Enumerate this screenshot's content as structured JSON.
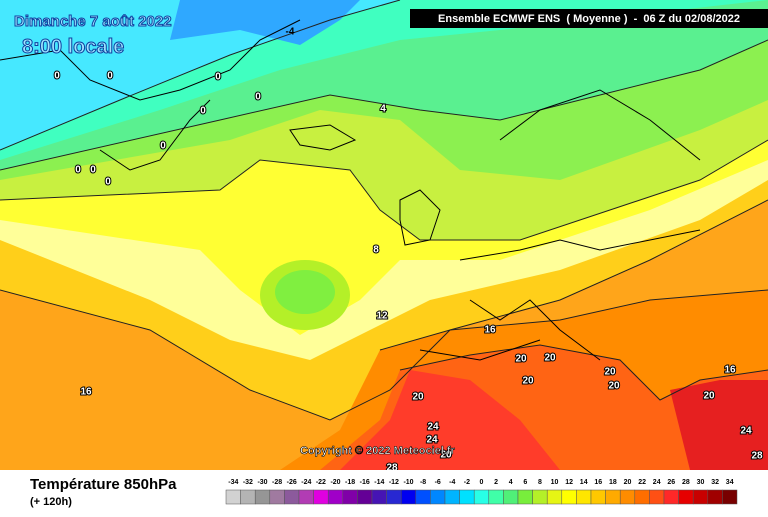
{
  "header": {
    "date": "Dimanche 7 août 2022",
    "time": "8:00 locale",
    "model": "Ensemble ECMWF ENS  ( Moyenne )  -  06 Z du 02/08/2022"
  },
  "copyright": "Copyright © 2022 Meteociel.fr",
  "legend": {
    "title": "Température 850hPa",
    "subtitle": "(+ 120h)",
    "values": [
      -34,
      -32,
      -30,
      -28,
      -26,
      -24,
      -22,
      -20,
      -18,
      -16,
      -14,
      -12,
      -10,
      -8,
      -6,
      -4,
      -2,
      0,
      2,
      4,
      6,
      8,
      10,
      12,
      14,
      16,
      18,
      20,
      22,
      24,
      26,
      28,
      30,
      32,
      34
    ],
    "colors": [
      "#d2d2d2",
      "#b4b4b4",
      "#969696",
      "#a07aa0",
      "#8c5a9c",
      "#b23cb4",
      "#e000e0",
      "#a000c8",
      "#8000a8",
      "#640096",
      "#4614b4",
      "#2828d2",
      "#0000f0",
      "#0050ff",
      "#0087ff",
      "#00b4ff",
      "#00e1ff",
      "#28ffe6",
      "#40ffa8",
      "#50f078",
      "#78ee3c",
      "#b4f028",
      "#e6f514",
      "#ffff00",
      "#ffe600",
      "#ffc800",
      "#ffaa00",
      "#ff8c00",
      "#ff6e00",
      "#ff5014",
      "#ff2828",
      "#e60000",
      "#c80000",
      "#a00000",
      "#780000"
    ]
  },
  "contours": [
    "-4",
    "0",
    "0",
    "0",
    "0",
    "0",
    "0",
    "0",
    "0",
    "0",
    "4",
    "8",
    "12",
    "16",
    "16",
    "20",
    "20",
    "20",
    "20",
    "20",
    "20",
    "20",
    "16",
    "24",
    "24",
    "20",
    "28",
    "28",
    "24"
  ]
}
